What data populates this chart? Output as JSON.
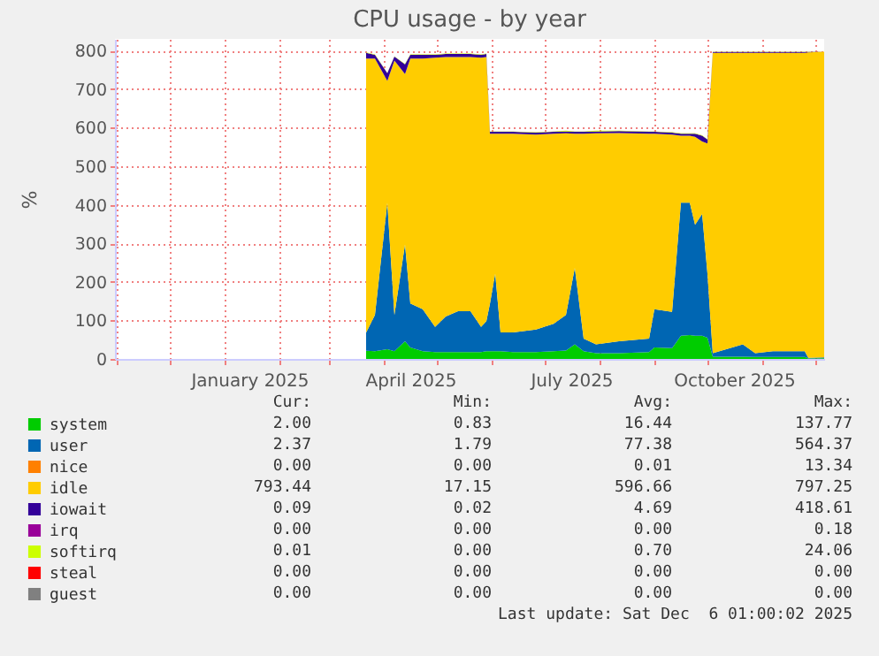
{
  "chart_data": {
    "type": "area",
    "title": "CPU usage - by year",
    "ylabel": "%",
    "stacked": true,
    "grid": true,
    "legend": "bottom",
    "x": [
      "2025-03-22",
      "2025-03-27",
      "2025-04-03",
      "2025-04-07",
      "2025-04-13",
      "2025-04-16",
      "2025-04-23",
      "2025-04-30",
      "2025-05-06",
      "2025-05-13",
      "2025-05-20",
      "2025-05-26",
      "2025-05-29",
      "2025-05-31",
      "2025-06-03",
      "2025-06-06",
      "2025-06-13",
      "2025-06-26",
      "2025-07-06",
      "2025-07-13",
      "2025-07-18",
      "2025-07-23",
      "2025-07-30",
      "2025-08-12",
      "2025-08-29",
      "2025-09-01",
      "2025-09-11",
      "2025-09-16",
      "2025-09-21",
      "2025-09-24",
      "2025-09-28",
      "2025-10-01",
      "2025-10-04",
      "2025-10-21",
      "2025-10-28",
      "2025-11-07",
      "2025-11-25",
      "2025-11-27",
      "2025-12-06"
    ],
    "series": [
      {
        "name": "system",
        "color": "#00cc00",
        "values": [
          21,
          20,
          25,
          20,
          46,
          30,
          20,
          18,
          18,
          18,
          18,
          18,
          20,
          20,
          20,
          20,
          18,
          18,
          20,
          22,
          38,
          20,
          15,
          15,
          18,
          30,
          28,
          60,
          62,
          60,
          60,
          55,
          6,
          6,
          5,
          5,
          5,
          1,
          2
        ]
      },
      {
        "name": "user",
        "color": "#0066b3",
        "values": [
          47,
          94,
          380,
          94,
          251,
          114,
          109,
          65,
          92,
          106,
          106,
          65,
          78,
          123,
          201,
          49,
          51,
          58,
          71,
          92,
          198,
          33,
          23,
          31,
          35,
          99,
          94,
          345,
          343,
          288,
          316,
          166,
          9,
          32,
          10,
          15,
          15,
          2,
          2
        ]
      },
      {
        "name": "nice",
        "color": "#ff8000",
        "values": [
          null,
          null,
          null,
          null,
          null,
          null,
          null,
          null,
          null,
          null,
          null,
          null,
          null,
          null,
          null,
          null,
          null,
          null,
          null,
          null,
          null,
          null,
          null,
          null,
          null,
          null,
          null,
          null,
          null,
          null,
          null,
          null,
          null,
          null,
          null,
          null,
          null,
          null,
          null
        ]
      },
      {
        "name": "idle",
        "color": "#ffcc00",
        "values": [
          711,
          665,
          316,
          660,
          442,
          635,
          650,
          698,
          673,
          659,
          659,
          698,
          685,
          441,
          363,
          515,
          515,
          506,
          493,
          471,
          348,
          531,
          547,
          540,
          531,
          455,
          460,
          174,
          174,
          228,
          188,
          338,
          779,
          756,
          779,
          774,
          774,
          792,
          793
        ]
      },
      {
        "name": "iowait",
        "color": "#330099",
        "values": [
          15,
          10,
          20,
          10,
          25,
          10,
          10,
          8,
          8,
          8,
          8,
          8,
          8,
          5,
          5,
          5,
          5,
          5,
          5,
          5,
          5,
          5,
          5,
          5,
          5,
          5,
          5,
          5,
          5,
          8,
          15,
          10,
          2,
          2,
          2,
          2,
          2,
          1,
          0
        ]
      },
      {
        "name": "irq",
        "color": "#990099",
        "values": [
          null,
          null,
          null,
          null,
          null,
          null,
          null,
          null,
          null,
          null,
          null,
          null,
          null,
          null,
          null,
          null,
          null,
          null,
          null,
          null,
          null,
          null,
          null,
          null,
          null,
          null,
          null,
          null,
          null,
          null,
          null,
          null,
          null,
          null,
          null,
          null,
          null,
          null,
          null
        ]
      },
      {
        "name": "softirq",
        "color": "#ccff00",
        "values": [
          1,
          1,
          1,
          1,
          1,
          1,
          1,
          1,
          1,
          1,
          1,
          1,
          1,
          1,
          1,
          1,
          1,
          1,
          1,
          2,
          1,
          1,
          2,
          1,
          1,
          1,
          1,
          1,
          1,
          1,
          1,
          1,
          1,
          1,
          1,
          1,
          1,
          1,
          0
        ]
      },
      {
        "name": "steal",
        "color": "#ff0000",
        "values": [
          null,
          null,
          null,
          null,
          null,
          null,
          null,
          null,
          null,
          null,
          null,
          null,
          null,
          null,
          null,
          null,
          null,
          null,
          null,
          null,
          null,
          null,
          null,
          null,
          null,
          null,
          null,
          null,
          null,
          null,
          null,
          null,
          null,
          null,
          null,
          null,
          null,
          null,
          null
        ]
      },
      {
        "name": "guest",
        "color": "#808080",
        "values": [
          null,
          null,
          null,
          null,
          null,
          null,
          null,
          null,
          null,
          null,
          null,
          null,
          null,
          null,
          null,
          null,
          null,
          null,
          null,
          null,
          null,
          null,
          null,
          null,
          null,
          null,
          null,
          null,
          null,
          null,
          null,
          null,
          null,
          null,
          null,
          null,
          null,
          null,
          null
        ]
      }
    ],
    "xlim": [
      "2024-10-31",
      "2025-12-06"
    ],
    "xticks": [
      {
        "value": "2024-11-01",
        "label": null
      },
      {
        "value": "2024-12-01",
        "label": null
      },
      {
        "value": "2025-01-01",
        "label": null
      },
      {
        "value": "2025-01-15",
        "label": "January 2025"
      },
      {
        "value": "2025-02-01",
        "label": null
      },
      {
        "value": "2025-03-01",
        "label": null
      },
      {
        "value": "2025-04-01",
        "label": null
      },
      {
        "value": "2025-04-16",
        "label": "April 2025"
      },
      {
        "value": "2025-05-01",
        "label": null
      },
      {
        "value": "2025-06-01",
        "label": null
      },
      {
        "value": "2025-07-01",
        "label": null
      },
      {
        "value": "2025-07-16",
        "label": "July 2025"
      },
      {
        "value": "2025-08-01",
        "label": null
      },
      {
        "value": "2025-09-01",
        "label": null
      },
      {
        "value": "2025-10-01",
        "label": null
      },
      {
        "value": "2025-10-16",
        "label": "October 2025"
      },
      {
        "value": "2025-11-01",
        "label": null
      },
      {
        "value": "2025-12-01",
        "label": null
      }
    ],
    "ylim": [
      0,
      830
    ],
    "yticks": [
      0,
      100,
      200,
      300,
      400,
      500,
      600,
      700,
      800
    ],
    "annotations": [
      "Cur:",
      "Min:",
      "Avg:",
      "Max:",
      "2.00",
      "0.83",
      "16.44",
      "137.77",
      "2.37",
      "1.79",
      "77.38",
      "564.37",
      "0.00",
      "0.00",
      "0.01",
      "13.34",
      "793.44",
      "17.15",
      "596.66",
      "797.25",
      "0.09",
      "0.02",
      "4.69",
      "418.61",
      "0.00",
      "0.00",
      "0.00",
      "0.18",
      "0.01",
      "0.00",
      "0.70",
      "24.06",
      "0.00",
      "0.00",
      "0.00",
      "0.00",
      "0.00",
      "0.00",
      "0.00",
      "0.00",
      "Last update: Sat Dec  6 01:00:02 2025"
    ]
  }
}
